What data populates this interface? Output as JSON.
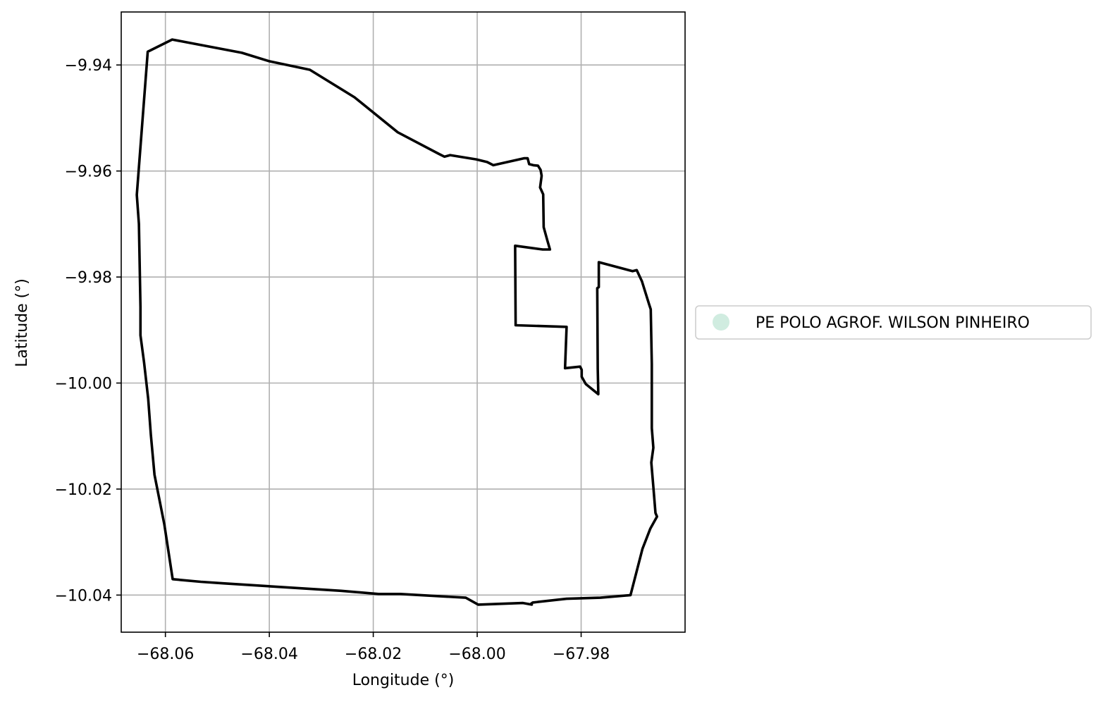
{
  "chart_data": {
    "type": "map",
    "xlabel": "Longitude (°)",
    "ylabel": "Latitude (°)",
    "xlim": [
      -68.0685,
      -67.96
    ],
    "ylim": [
      -10.047,
      -9.93
    ],
    "grid": true,
    "x_ticks": [
      -68.06,
      -68.04,
      -68.02,
      -68.0,
      -67.98
    ],
    "x_tick_labels": [
      "−68.06",
      "−68.04",
      "−68.02",
      "−68.00",
      "−67.98"
    ],
    "y_ticks": [
      -9.94,
      -9.96,
      -9.98,
      -10.0,
      -10.02,
      -10.04
    ],
    "y_tick_labels": [
      "−9.94",
      "−9.96",
      "−9.98",
      "−10.00",
      "−10.02",
      "−10.04"
    ],
    "legend": {
      "placement": "center-left outside right",
      "entries": [
        {
          "label": "PE POLO AGROF. WILSON PINHEIRO",
          "color": "#d0ece0"
        }
      ]
    },
    "boundary": {
      "name": "PE POLO AGROF. WILSON PINHEIRO",
      "stroke": "#000000",
      "fill": "#d0ece0",
      "coordinates": [
        [
          -68.0634,
          -9.9375
        ],
        [
          -68.0587,
          -9.9352
        ],
        [
          -68.0453,
          -9.9377
        ],
        [
          -68.04,
          -9.9393
        ],
        [
          -68.0322,
          -9.9409
        ],
        [
          -68.0236,
          -9.9461
        ],
        [
          -68.0153,
          -9.9527
        ],
        [
          -68.0073,
          -9.9568
        ],
        [
          -68.0063,
          -9.9573
        ],
        [
          -68.0052,
          -9.957
        ],
        [
          -68.0002,
          -9.9578
        ],
        [
          -67.9981,
          -9.9583
        ],
        [
          -67.9969,
          -9.9589
        ],
        [
          -67.991,
          -9.9576
        ],
        [
          -67.9903,
          -9.9576
        ],
        [
          -67.99,
          -9.9587
        ],
        [
          -67.9892,
          -9.9589
        ],
        [
          -67.9883,
          -9.959
        ],
        [
          -67.9878,
          -9.9598
        ],
        [
          -67.9876,
          -9.9609
        ],
        [
          -67.9879,
          -9.9631
        ],
        [
          -67.9873,
          -9.9644
        ],
        [
          -67.9872,
          -9.9706
        ],
        [
          -67.9865,
          -9.9731
        ],
        [
          -67.986,
          -9.9748
        ],
        [
          -67.9874,
          -9.9748
        ],
        [
          -67.9927,
          -9.9741
        ],
        [
          -67.9926,
          -9.9891
        ],
        [
          -67.9828,
          -9.9894
        ],
        [
          -67.9831,
          -9.9972
        ],
        [
          -67.9802,
          -9.9969
        ],
        [
          -67.9799,
          -9.9975
        ],
        [
          -67.9799,
          -9.9988
        ],
        [
          -67.9791,
          -10.0002
        ],
        [
          -67.9767,
          -10.0021
        ],
        [
          -67.9768,
          -9.9973
        ],
        [
          -67.9769,
          -9.9821
        ],
        [
          -67.9766,
          -9.9819
        ],
        [
          -67.9766,
          -9.9772
        ],
        [
          -67.9701,
          -9.9789
        ],
        [
          -67.9693,
          -9.9787
        ],
        [
          -67.9683,
          -9.9808
        ],
        [
          -67.9669,
          -9.9852
        ],
        [
          -67.9666,
          -9.9861
        ],
        [
          -67.9664,
          -9.9964
        ],
        [
          -67.9664,
          -10.003
        ],
        [
          -67.9664,
          -10.0085
        ],
        [
          -67.9661,
          -10.0122
        ],
        [
          -67.9665,
          -10.015
        ],
        [
          -67.9661,
          -10.0196
        ],
        [
          -67.9657,
          -10.0245
        ],
        [
          -67.9654,
          -10.0252
        ],
        [
          -67.9667,
          -10.0275
        ],
        [
          -67.9682,
          -10.0313
        ],
        [
          -67.9705,
          -10.04
        ],
        [
          -67.9763,
          -10.0405
        ],
        [
          -67.9828,
          -10.0407
        ],
        [
          -67.9893,
          -10.0414
        ],
        [
          -67.9896,
          -10.0416
        ],
        [
          -67.9895,
          -10.0418
        ],
        [
          -67.9912,
          -10.0415
        ],
        [
          -67.9998,
          -10.0418
        ],
        [
          -68.0022,
          -10.0405
        ],
        [
          -68.0148,
          -10.0398
        ],
        [
          -68.019,
          -10.0398
        ],
        [
          -68.0262,
          -10.0392
        ],
        [
          -68.0486,
          -10.0378
        ],
        [
          -68.0532,
          -10.0375
        ],
        [
          -68.0586,
          -10.037
        ],
        [
          -68.0602,
          -10.0267
        ],
        [
          -68.0621,
          -10.0173
        ],
        [
          -68.0628,
          -10.0097
        ],
        [
          -68.0633,
          -10.003
        ],
        [
          -68.0641,
          -9.9961
        ],
        [
          -68.0648,
          -9.991
        ],
        [
          -68.0648,
          -9.9857
        ],
        [
          -68.0651,
          -9.97
        ],
        [
          -68.0655,
          -9.9645
        ],
        [
          -68.0634,
          -9.9375
        ]
      ]
    }
  }
}
